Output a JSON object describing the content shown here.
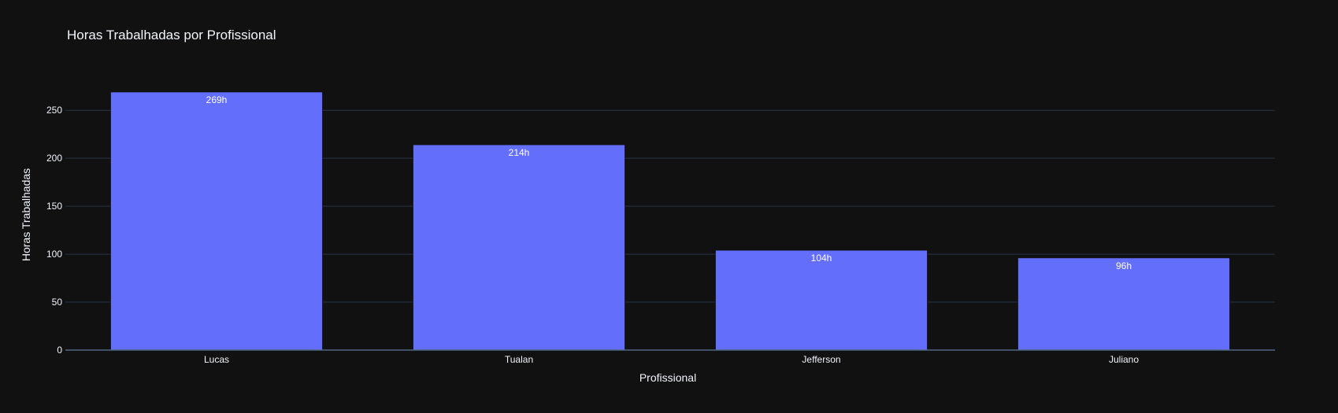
{
  "colors": {
    "background": "#111111",
    "bar": "#636efa",
    "grid": "#283442",
    "text": "#f2f5fa"
  },
  "chart_data": {
    "type": "bar",
    "title": "Horas Trabalhadas por Profissional",
    "xlabel": "Profissional",
    "ylabel": "Horas Trabalhadas",
    "categories": [
      "Lucas",
      "Tualan",
      "Jefferson",
      "Juliano"
    ],
    "values": [
      269,
      214,
      104,
      96
    ],
    "data_labels": [
      "269h",
      "214h",
      "104h",
      "96h"
    ],
    "ylim": [
      0,
      283
    ],
    "yticks": [
      0,
      50,
      100,
      150,
      200,
      250
    ],
    "grid": true,
    "legend": "none"
  }
}
